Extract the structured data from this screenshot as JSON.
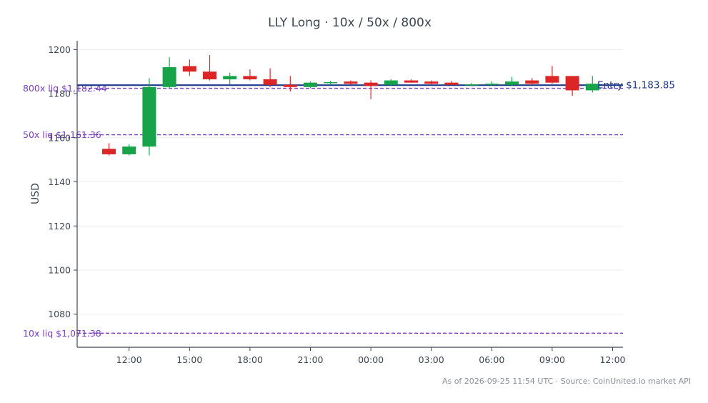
{
  "chart_data": {
    "type": "candlestick",
    "title": "LLY Long · 10x / 50x / 800x",
    "ylabel": "USD",
    "xlabel": "",
    "ylim": [
      1065,
      1204
    ],
    "yticks": [
      1080,
      1100,
      1120,
      1140,
      1160,
      1180,
      1200
    ],
    "x_tick_labels": [
      "12:00",
      "15:00",
      "18:00",
      "21:00",
      "00:00",
      "03:00",
      "06:00",
      "09:00",
      "12:00"
    ],
    "grid": true,
    "colors": {
      "up": "#16a34a",
      "down": "#dc2626",
      "entry": "#1e3a8a",
      "liq": "#7a3fc0",
      "grid": "#ebedf0",
      "axis": "#3b4652"
    },
    "entry": {
      "price": 1183.85,
      "label": "Entry $1,183.85"
    },
    "liquidations": [
      {
        "price": 1182.44,
        "label": "800x liq $1,182.44"
      },
      {
        "price": 1161.36,
        "label": "50x liq $1,161.36"
      },
      {
        "price": 1071.38,
        "label": "10x liq $1,071.38"
      }
    ],
    "candles": [
      {
        "t": "11:00",
        "open": 1155.0,
        "high": 1157.5,
        "low": 1152.0,
        "close": 1152.5
      },
      {
        "t": "12:00",
        "open": 1152.5,
        "high": 1157.0,
        "low": 1152.0,
        "close": 1156.0
      },
      {
        "t": "13:00",
        "open": 1156.0,
        "high": 1187.0,
        "low": 1152.0,
        "close": 1183.0
      },
      {
        "t": "14:00",
        "open": 1183.0,
        "high": 1196.5,
        "low": 1182.5,
        "close": 1192.0
      },
      {
        "t": "15:00",
        "open": 1192.5,
        "high": 1195.5,
        "low": 1188.0,
        "close": 1190.0
      },
      {
        "t": "16:00",
        "open": 1190.0,
        "high": 1197.5,
        "low": 1186.0,
        "close": 1186.5
      },
      {
        "t": "17:00",
        "open": 1186.5,
        "high": 1189.5,
        "low": 1184.0,
        "close": 1188.0
      },
      {
        "t": "18:00",
        "open": 1188.0,
        "high": 1191.0,
        "low": 1186.0,
        "close": 1186.5
      },
      {
        "t": "19:00",
        "open": 1186.5,
        "high": 1191.5,
        "low": 1183.0,
        "close": 1184.0
      },
      {
        "t": "20:00",
        "open": 1184.0,
        "high": 1188.0,
        "low": 1181.0,
        "close": 1183.0
      },
      {
        "t": "21:00",
        "open": 1183.0,
        "high": 1185.5,
        "low": 1182.5,
        "close": 1185.0
      },
      {
        "t": "22:00",
        "open": 1184.8,
        "high": 1185.8,
        "low": 1184.2,
        "close": 1185.2
      },
      {
        "t": "23:00",
        "open": 1185.5,
        "high": 1186.0,
        "low": 1184.0,
        "close": 1184.5
      },
      {
        "t": "00:00",
        "open": 1185.0,
        "high": 1186.0,
        "low": 1177.5,
        "close": 1183.5
      },
      {
        "t": "01:00",
        "open": 1184.0,
        "high": 1186.5,
        "low": 1183.5,
        "close": 1186.0
      },
      {
        "t": "02:00",
        "open": 1186.0,
        "high": 1186.5,
        "low": 1185.0,
        "close": 1185.0
      },
      {
        "t": "03:00",
        "open": 1185.5,
        "high": 1186.0,
        "low": 1184.0,
        "close": 1184.5
      },
      {
        "t": "04:00",
        "open": 1185.0,
        "high": 1185.8,
        "low": 1183.8,
        "close": 1184.0
      },
      {
        "t": "05:00",
        "open": 1184.0,
        "high": 1184.8,
        "low": 1183.5,
        "close": 1184.2
      },
      {
        "t": "06:00",
        "open": 1184.0,
        "high": 1185.5,
        "low": 1183.5,
        "close": 1184.5
      },
      {
        "t": "07:00",
        "open": 1184.0,
        "high": 1187.5,
        "low": 1183.5,
        "close": 1185.5
      },
      {
        "t": "08:00",
        "open": 1186.0,
        "high": 1187.0,
        "low": 1184.0,
        "close": 1184.5
      },
      {
        "t": "09:00",
        "open": 1188.0,
        "high": 1192.5,
        "low": 1184.5,
        "close": 1185.0
      },
      {
        "t": "10:00",
        "open": 1188.0,
        "high": 1188.0,
        "low": 1179.0,
        "close": 1181.5
      },
      {
        "t": "11:00",
        "open": 1181.5,
        "high": 1188.0,
        "low": 1180.5,
        "close": 1184.5
      }
    ]
  },
  "footer": {
    "text": "As of 2026-09-25 11:54 UTC · Source: CoinUnited.io market API"
  }
}
